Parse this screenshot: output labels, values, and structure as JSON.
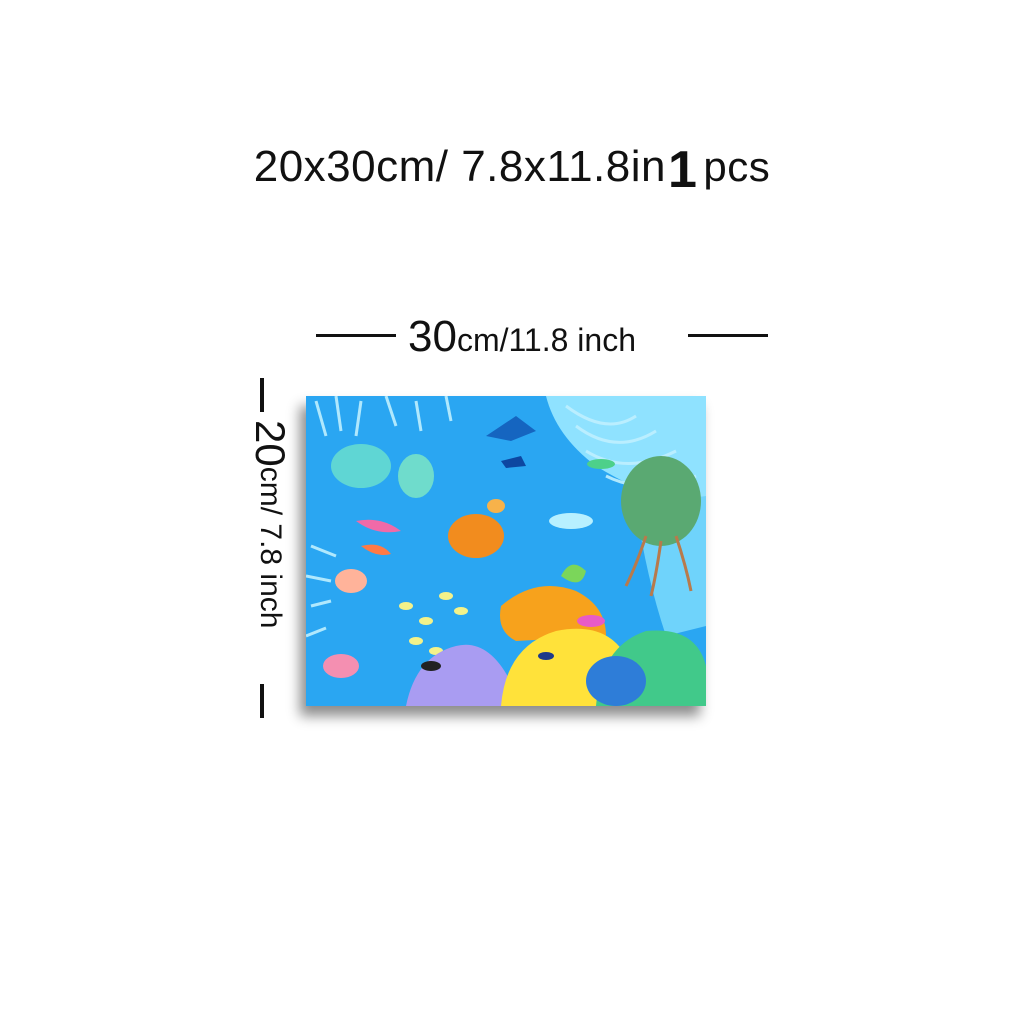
{
  "headline": {
    "size_text": "20x30cm/ 7.8x11.8in",
    "count_number": "1",
    "count_unit": "pcs"
  },
  "width_dimension": {
    "number": "30",
    "rest": "cm/11.8 inch"
  },
  "height_dimension": {
    "number": "20",
    "rest": "cm/ 7.8 inch"
  },
  "artwork": {
    "subject": "underwater coral reef painting",
    "colors": {
      "water": "#1f9df0",
      "light_water": "#7fdcff",
      "coral_yellow": "#ffe23a",
      "coral_orange": "#f7a21c",
      "coral_purple": "#a99cf2",
      "coral_green": "#41c98a",
      "turtle": "#f28c1e"
    }
  }
}
